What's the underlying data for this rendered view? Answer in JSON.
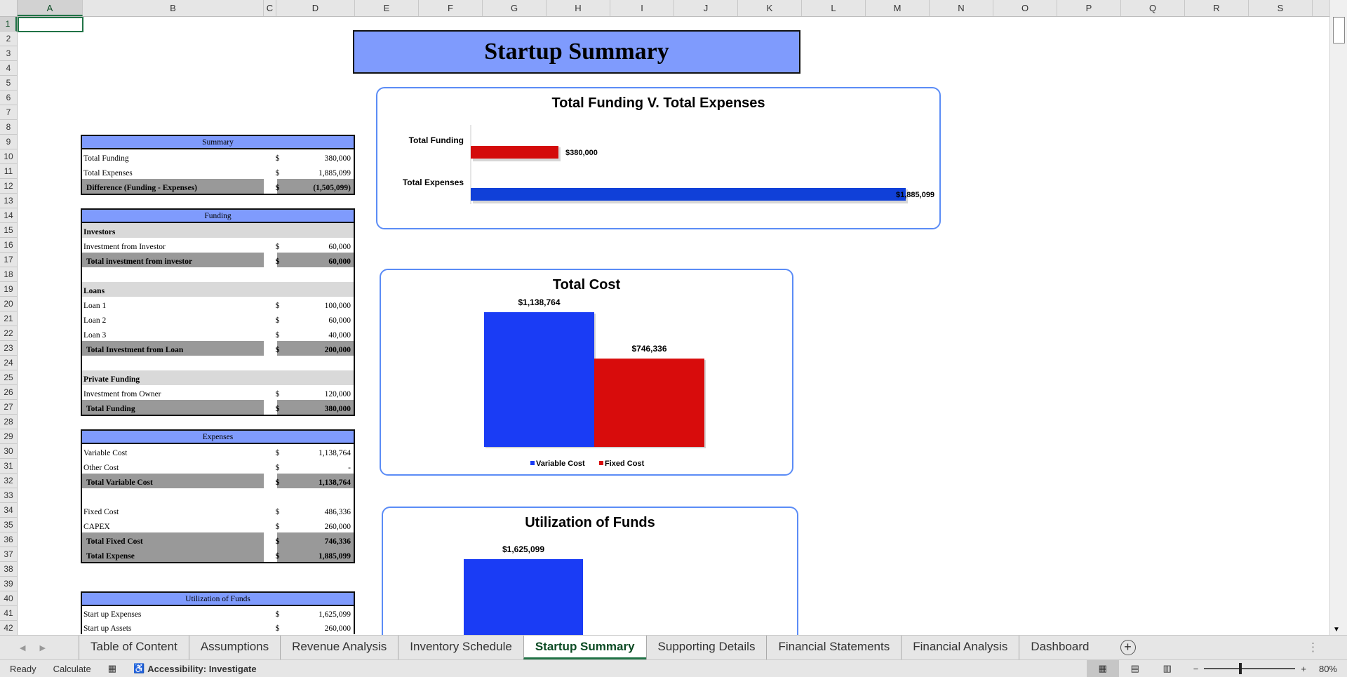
{
  "columns": [
    "A",
    "B",
    "C",
    "D",
    "E",
    "F",
    "G",
    "H",
    "I",
    "J",
    "K",
    "L",
    "M",
    "N",
    "O",
    "P",
    "Q",
    "R",
    "S"
  ],
  "title": "Startup Summary",
  "summary": {
    "header": "Summary",
    "rows": [
      {
        "label": "Total Funding",
        "cur": "$",
        "value": "380,000",
        "style": "item"
      },
      {
        "label": "Total Expenses",
        "cur": "$",
        "value": "1,885,099",
        "style": "item"
      },
      {
        "label": "Difference (Funding - Expenses)",
        "cur": "$",
        "value": "(1,505,099)",
        "style": "tot"
      }
    ]
  },
  "funding": {
    "header": "Funding",
    "rows": [
      {
        "label": "Investors",
        "cur": "",
        "value": "",
        "style": "sec"
      },
      {
        "label": "Investment from Investor",
        "cur": "$",
        "value": "60,000",
        "style": "item"
      },
      {
        "label": "Total investment from investor",
        "cur": "$",
        "value": "60,000",
        "style": "tot"
      },
      {
        "label": "",
        "cur": "",
        "value": "",
        "style": "item"
      },
      {
        "label": "Loans",
        "cur": "",
        "value": "",
        "style": "sec"
      },
      {
        "label": "Loan 1",
        "cur": "$",
        "value": "100,000",
        "style": "item"
      },
      {
        "label": "Loan 2",
        "cur": "$",
        "value": "60,000",
        "style": "item"
      },
      {
        "label": "Loan 3",
        "cur": "$",
        "value": "40,000",
        "style": "item"
      },
      {
        "label": "Total Investment from Loan",
        "cur": "$",
        "value": "200,000",
        "style": "tot"
      },
      {
        "label": "",
        "cur": "",
        "value": "",
        "style": "item"
      },
      {
        "label": "Private Funding",
        "cur": "",
        "value": "",
        "style": "sec"
      },
      {
        "label": "Investment from Owner",
        "cur": "$",
        "value": "120,000",
        "style": "item"
      },
      {
        "label": "Total Funding",
        "cur": "$",
        "value": "380,000",
        "style": "tot"
      }
    ]
  },
  "expenses": {
    "header": "Expenses",
    "rows": [
      {
        "label": "Variable Cost",
        "cur": "$",
        "value": "1,138,764",
        "style": "item"
      },
      {
        "label": "Other Cost",
        "cur": "$",
        "value": "-",
        "style": "item"
      },
      {
        "label": "Total Variable Cost",
        "cur": "$",
        "value": "1,138,764",
        "style": "tot"
      },
      {
        "label": "",
        "cur": "",
        "value": "",
        "style": "item"
      },
      {
        "label": "Fixed Cost",
        "cur": "$",
        "value": "486,336",
        "style": "item"
      },
      {
        "label": "CAPEX",
        "cur": "$",
        "value": "260,000",
        "style": "item"
      },
      {
        "label": "Total Fixed Cost",
        "cur": "$",
        "value": "746,336",
        "style": "tot"
      },
      {
        "label": "Total Expense",
        "cur": "$",
        "value": "1,885,099",
        "style": "tot"
      }
    ]
  },
  "utilization": {
    "header": "Utilization of Funds",
    "rows": [
      {
        "label": "Start up Expenses",
        "cur": "$",
        "value": "1,625,099",
        "style": "item"
      },
      {
        "label": "Start up Assets",
        "cur": "$",
        "value": "260,000",
        "style": "item"
      }
    ]
  },
  "chart_data": [
    {
      "type": "bar",
      "orientation": "horizontal",
      "title": "Total Funding V. Total Expenses",
      "categories": [
        "Total Funding",
        "Total Expenses"
      ],
      "values": [
        380000,
        1885099
      ],
      "data_labels": [
        "$380,000",
        "$1,885,099"
      ],
      "colors": [
        "#d40b0b",
        "#1040d8"
      ]
    },
    {
      "type": "bar",
      "title": "Total Cost",
      "categories": [
        "Variable Cost",
        "Fixed Cost"
      ],
      "values": [
        1138764,
        746336
      ],
      "data_labels": [
        "$1,138,764",
        "$746,336"
      ],
      "legend": "bottom",
      "colors": [
        "#1a3cf5",
        "#d80c0c"
      ]
    },
    {
      "type": "bar",
      "title": "Utilization of Funds",
      "categories": [
        "Start up Expenses"
      ],
      "values": [
        1625099
      ],
      "data_labels": [
        "$1,625,099"
      ],
      "colors": [
        "#1a3cf5"
      ]
    }
  ],
  "tabs": [
    "Table of Content",
    "Assumptions",
    "Revenue Analysis",
    "Inventory Schedule",
    "Startup Summary",
    "Supporting Details",
    "Financial Statements",
    "Financial Analysis",
    "Dashboard"
  ],
  "active_tab": "Startup Summary",
  "status": {
    "ready": "Ready",
    "calculate": "Calculate",
    "accessibility": "Accessibility: Investigate",
    "zoom": "80%"
  }
}
